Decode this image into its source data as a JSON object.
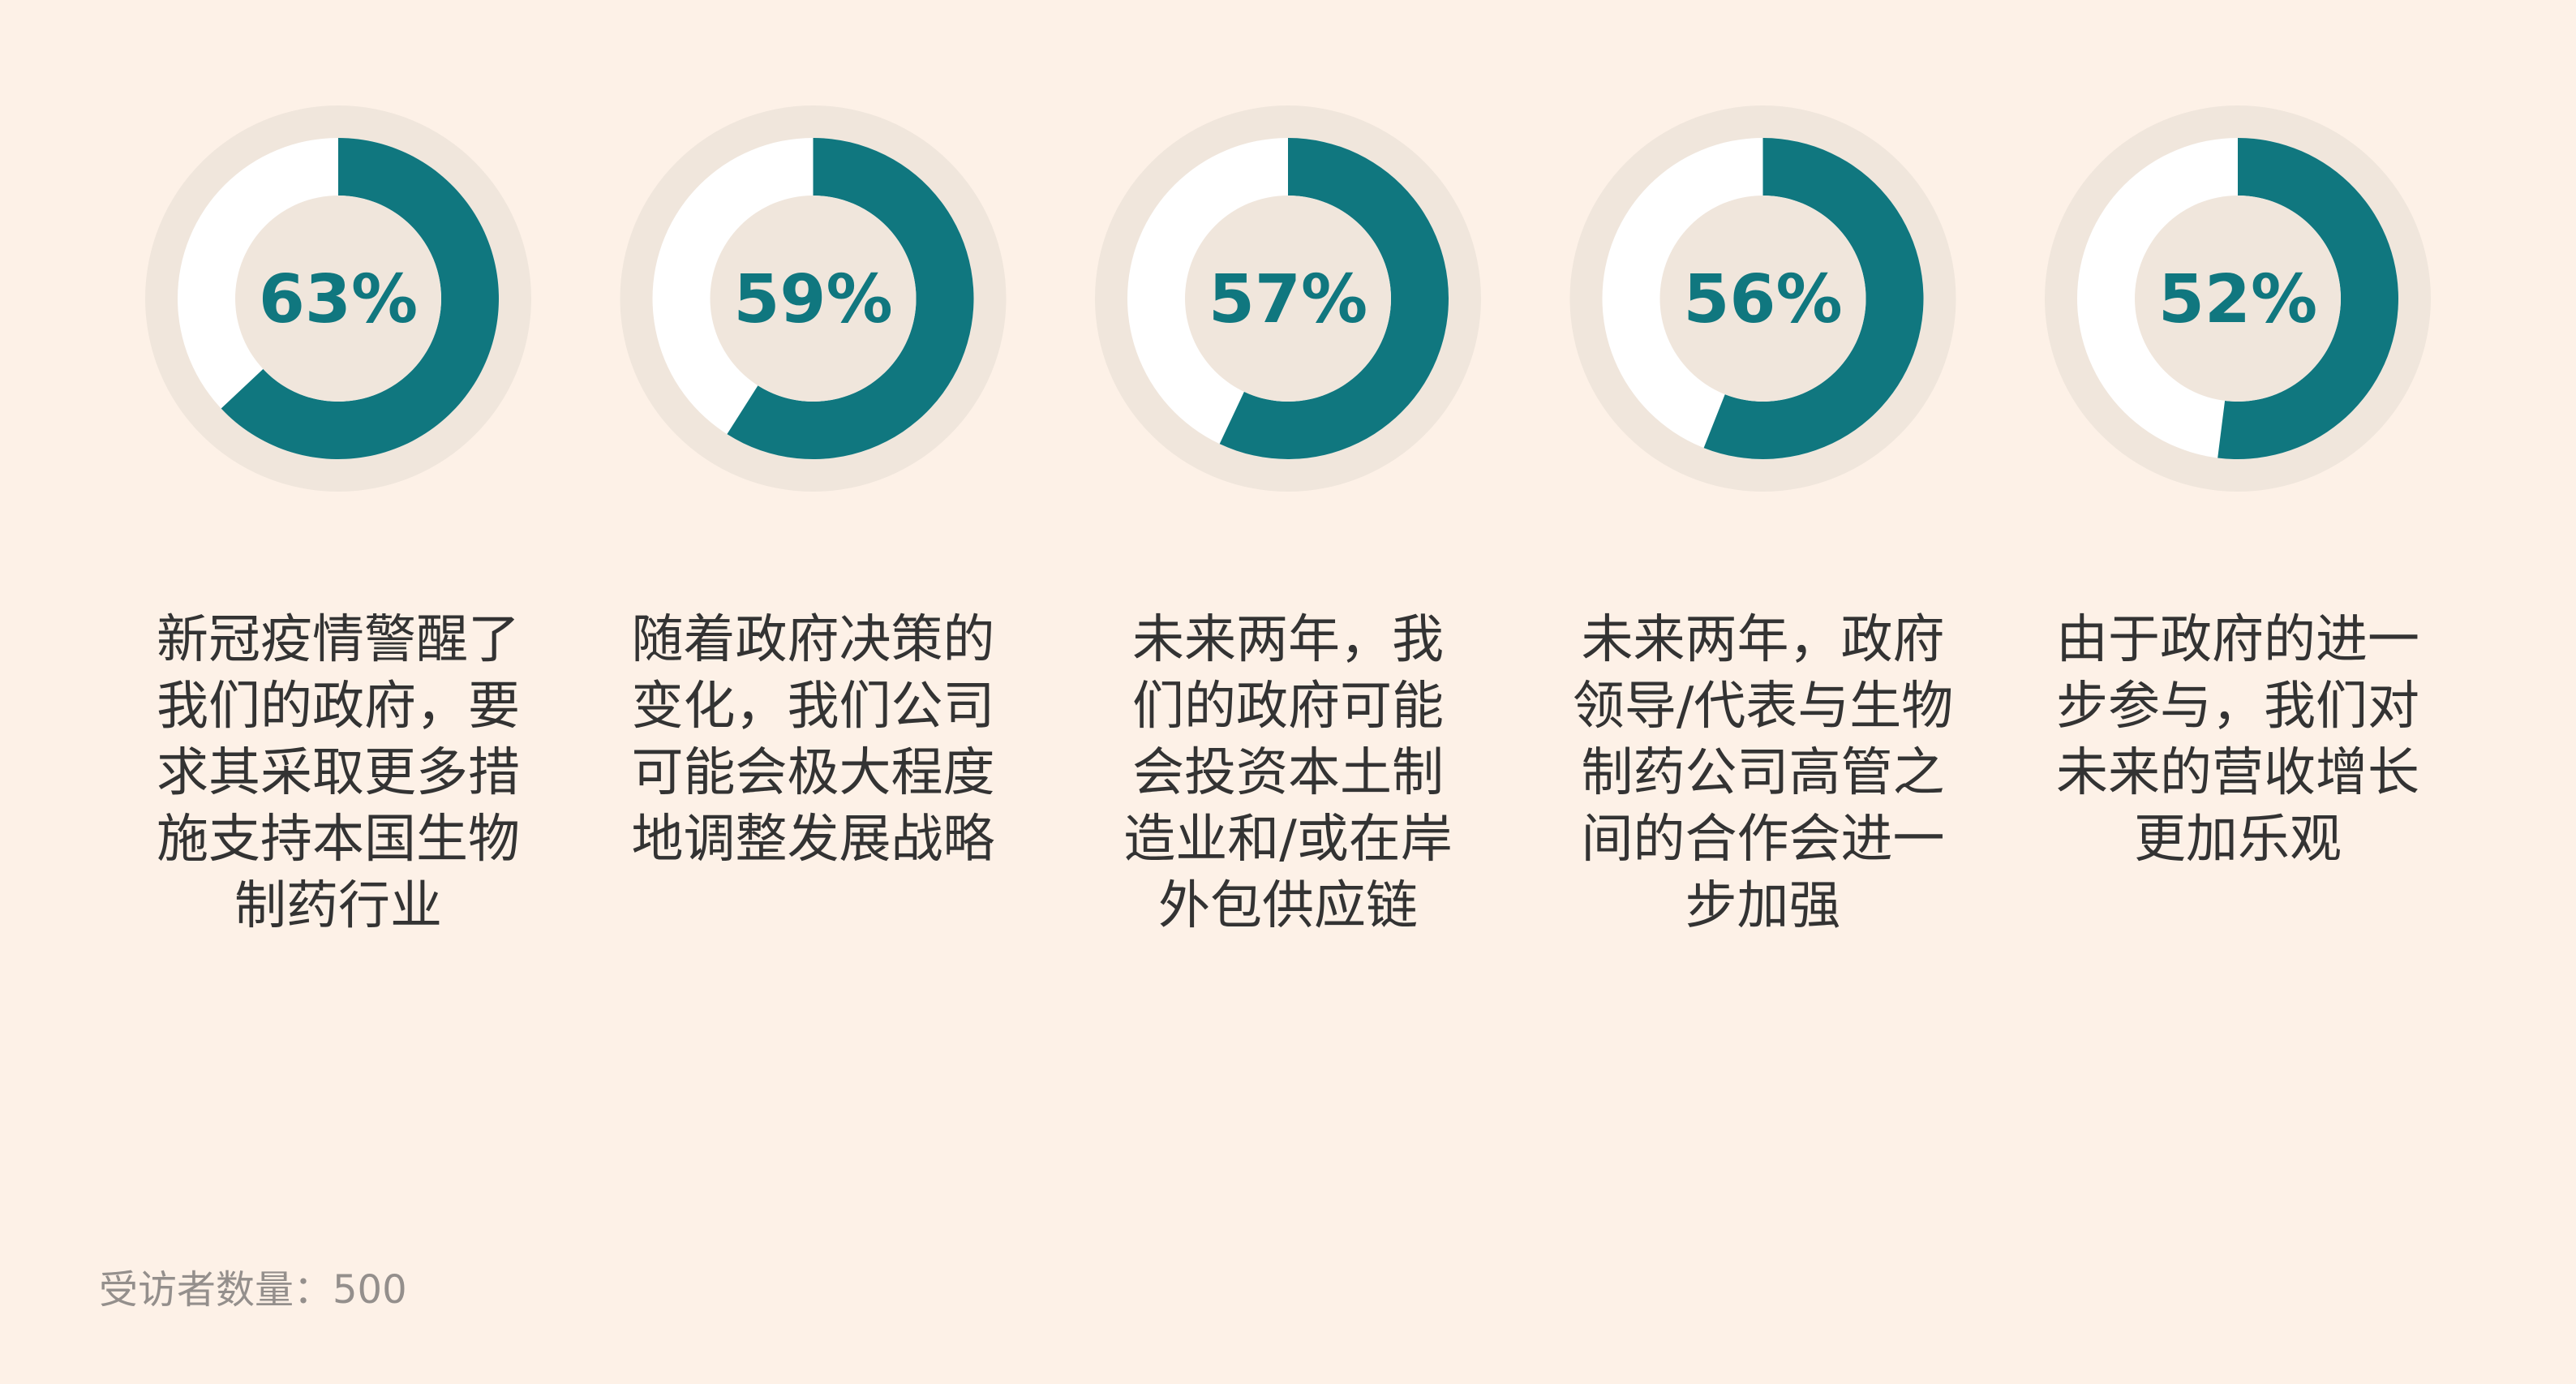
{
  "chart_data": {
    "type": "donut",
    "unit": "%",
    "range": [
      0,
      100
    ],
    "colors": {
      "filled": "#10777f",
      "remaining": "#ffffff",
      "halo": "#f0e6dc",
      "background": "#fdf1e7",
      "value_text": "#10777f"
    },
    "items": [
      {
        "value": 63,
        "value_label": "63%",
        "label": "新冠疫情警醒了\n我们的政府，要\n求其采取更多措\n施支持本国生物\n制药行业"
      },
      {
        "value": 59,
        "value_label": "59%",
        "label": "随着政府决策的\n变化，我们公司\n可能会极大程度\n地调整发展战略"
      },
      {
        "value": 57,
        "value_label": "57%",
        "label": "未来两年，我\n们的政府可能\n会投资本土制\n造业和/或在岸\n外包供应链"
      },
      {
        "value": 56,
        "value_label": "56%",
        "label": "未来两年，政府\n领导/代表与生物\n制药公司高管之\n间的合作会进一\n步加强"
      },
      {
        "value": 52,
        "value_label": "52%",
        "label": "由于政府的进一\n步参与，我们对\n未来的营收增长\n更加乐观"
      }
    ]
  },
  "footnote": "受访者数量：500"
}
